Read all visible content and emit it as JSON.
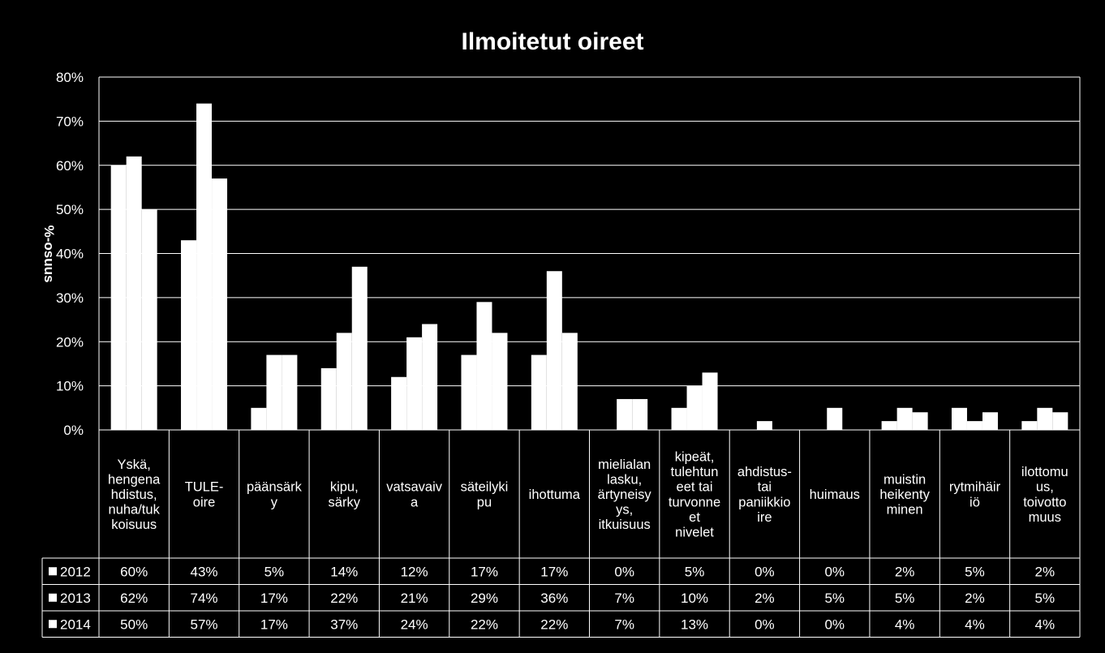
{
  "chart_data": {
    "type": "bar",
    "title": "Ilmoitetut oireet",
    "ylabel": "%-osuus",
    "ylim": [
      0,
      80
    ],
    "yticks": [
      "0%",
      "10%",
      "20%",
      "30%",
      "40%",
      "50%",
      "60%",
      "70%",
      "80%"
    ],
    "grid": true,
    "legend": "data-table-left",
    "categories": [
      [
        "Yskä,",
        "hengena",
        "hdistus,",
        "nuha/tuk",
        "koisuus"
      ],
      [
        "TULE-",
        "oire"
      ],
      [
        "päänsärk",
        "y"
      ],
      [
        "kipu,",
        "särky"
      ],
      [
        "vatsavaiv",
        "a"
      ],
      [
        "säteilyki",
        "pu"
      ],
      [
        "ihottuma"
      ],
      [
        "mielialan",
        "lasku,",
        "ärtyneisy",
        "ys,",
        "itkuisuus"
      ],
      [
        "kipeät,",
        "tulehtun",
        "eet tai",
        "turvonne",
        "et",
        "nivelet"
      ],
      [
        "ahdistus-",
        "tai",
        "paniikkio",
        "ire"
      ],
      [
        "huimaus"
      ],
      [
        "muistin",
        "heikenty",
        "minen"
      ],
      [
        "rytmihäir",
        "iö"
      ],
      [
        "ilottomu",
        "us,",
        "toivotto",
        "muus"
      ]
    ],
    "series": [
      {
        "name": "2012",
        "values": [
          60,
          43,
          5,
          14,
          12,
          17,
          17,
          0,
          5,
          0,
          0,
          2,
          5,
          2
        ],
        "labels": [
          "60%",
          "43%",
          "5%",
          "14%",
          "12%",
          "17%",
          "17%",
          "0%",
          "5%",
          "0%",
          "0%",
          "2%",
          "5%",
          "2%"
        ]
      },
      {
        "name": "2013",
        "values": [
          62,
          74,
          17,
          22,
          21,
          29,
          36,
          7,
          10,
          2,
          5,
          5,
          2,
          5
        ],
        "labels": [
          "62%",
          "74%",
          "17%",
          "22%",
          "21%",
          "29%",
          "36%",
          "7%",
          "10%",
          "2%",
          "5%",
          "5%",
          "2%",
          "5%"
        ]
      },
      {
        "name": "2014",
        "values": [
          50,
          57,
          17,
          37,
          24,
          22,
          22,
          7,
          13,
          0,
          0,
          4,
          4,
          4
        ],
        "labels": [
          "50%",
          "57%",
          "17%",
          "37%",
          "24%",
          "22%",
          "22%",
          "7%",
          "13%",
          "0%",
          "0%",
          "4%",
          "4%",
          "4%"
        ]
      }
    ],
    "colors": {
      "background": "#000000",
      "bars": "#ffffff",
      "grid": "#ffffff"
    }
  }
}
